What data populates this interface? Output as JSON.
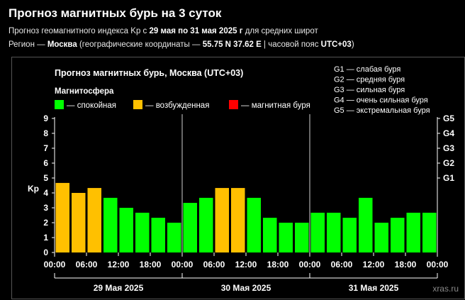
{
  "header": {
    "title": "Прогноз магнитных бурь на 3 суток",
    "line1_pre": "Прогноз геомагнитного индекса Kp с ",
    "line1_bold": "29 мая по 31 мая 2025 г",
    "line1_post": " для средних широт",
    "line2_pre": "Регион — ",
    "line2_region": "Москва",
    "line2_mid": " (географические координаты — ",
    "line2_coords": "55.75 N 37.62 E",
    "line2_mid2": " | часовой пояс ",
    "line2_tz": "UTC+03",
    "line2_post": ")"
  },
  "chart_data": {
    "type": "bar",
    "title": "Прогноз магнитных бурь, Москва (UTC+03)",
    "legend_title": "Магнитосфера",
    "legend": [
      {
        "label": "— спокойная",
        "color": "#00ff00"
      },
      {
        "label": "— возбужденная",
        "color": "#ffc000"
      },
      {
        "label": "— магнитная буря",
        "color": "#ff0000"
      }
    ],
    "storm_levels": [
      "G1 — слабая буря",
      "G2 — средняя буря",
      "G3 — сильная буря",
      "G4 — очень сильная буря",
      "G5 — экстремальная буря"
    ],
    "ylabel": "Kp",
    "ylim": [
      0,
      9
    ],
    "yticks": [
      "0",
      "1",
      "2",
      "3",
      "4",
      "5",
      "6",
      "7",
      "8",
      "9"
    ],
    "right_ticks": [
      {
        "label": "G1",
        "value": 5
      },
      {
        "label": "G2",
        "value": 6
      },
      {
        "label": "G3",
        "value": 7
      },
      {
        "label": "G4",
        "value": 8
      },
      {
        "label": "G5",
        "value": 9
      }
    ],
    "days": [
      "29 Мая 2025",
      "30 Мая 2025",
      "31 Мая 2025"
    ],
    "xticks": [
      "00:00",
      "06:00",
      "12:00",
      "18:00",
      "00:00",
      "06:00",
      "12:00",
      "18:00",
      "00:00",
      "06:00",
      "12:00",
      "18:00",
      "00:00"
    ],
    "values": [
      4.67,
      4.0,
      4.33,
      3.67,
      3.0,
      2.67,
      2.33,
      2.0,
      3.33,
      3.67,
      4.33,
      4.33,
      3.67,
      2.33,
      2.0,
      2.0,
      2.67,
      2.67,
      2.33,
      3.67,
      2.0,
      2.33,
      2.67,
      2.67
    ],
    "colors": {
      "calm": "#00ff00",
      "active": "#ffc000",
      "storm": "#ff0000"
    },
    "watermark": "xras.ru"
  }
}
